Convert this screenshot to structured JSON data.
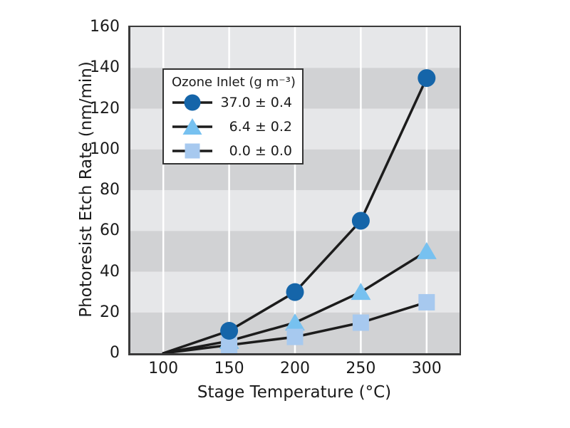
{
  "chart_data": {
    "type": "line",
    "title": "",
    "xlabel": "Stage Temperature (°C)",
    "ylabel": "Photoresist Etch Rate (nm/min)",
    "x": [
      100,
      150,
      200,
      250,
      300
    ],
    "xticks": [
      100,
      150,
      200,
      250,
      300
    ],
    "yticks": [
      0,
      20,
      40,
      60,
      80,
      100,
      120,
      140,
      160
    ],
    "xlim": [
      75,
      325
    ],
    "ylim": [
      0,
      160
    ],
    "ytick_step": 20,
    "grid": "white vertical gridlines at x ticks; horizontal alternating shaded bands every 20 units",
    "legend": {
      "title": "Ozone Inlet (g m⁻³)",
      "position": "upper-left-inside"
    },
    "series": [
      {
        "name": "37.0 ± 0.4",
        "marker": "circle",
        "color": "#1565a9",
        "values": [
          0,
          11,
          30,
          65,
          135
        ]
      },
      {
        "name": "6.4 ± 0.2",
        "marker": "triangle",
        "color": "#77c1f0",
        "values": [
          0,
          6,
          15,
          30,
          50
        ]
      },
      {
        "name": "0.0 ± 0.0",
        "marker": "square",
        "color": "#a7c9ef",
        "values": [
          0,
          4,
          8,
          15,
          25
        ]
      }
    ],
    "marker_z_order": [
      1,
      2,
      0
    ],
    "first_point_has_marker": false,
    "style": {
      "band_dark": "#d1d2d4",
      "band_light": "#e6e7e9",
      "gridline_color": "#ffffff",
      "line_color": "#1c1c1c",
      "border_color": "#3a3a3a",
      "text_color": "#1a1a1a",
      "background": "#ffffff"
    }
  }
}
